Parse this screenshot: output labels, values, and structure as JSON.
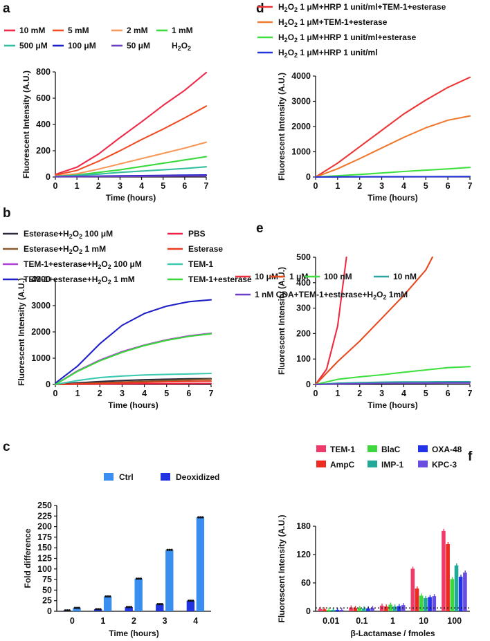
{
  "chart_data": [
    {
      "panel": "a",
      "type": "line",
      "xlabel": "Time (hours)",
      "ylabel": "Fluorescent Intensity (A.U.)",
      "xlim": [
        0,
        7
      ],
      "ylim": [
        0,
        800
      ],
      "xticks": [
        "0",
        "1",
        "2",
        "3",
        "4",
        "5",
        "6",
        "7"
      ],
      "yticks": [
        "0",
        "200",
        "400",
        "600",
        "800"
      ],
      "legend_suffix": "H2O2",
      "series": [
        {
          "name": "10 mM",
          "color": "#ef2a4a",
          "points": [
            [
              0,
              20
            ],
            [
              1,
              75
            ],
            [
              2,
              175
            ],
            [
              3,
              300
            ],
            [
              4,
              420
            ],
            [
              5,
              545
            ],
            [
              6,
              660
            ],
            [
              7,
              795
            ]
          ]
        },
        {
          "name": "5 mM",
          "color": "#f04d24",
          "points": [
            [
              0,
              15
            ],
            [
              1,
              50
            ],
            [
              2,
              120
            ],
            [
              3,
              200
            ],
            [
              4,
              285
            ],
            [
              5,
              365
            ],
            [
              6,
              450
            ],
            [
              7,
              540
            ]
          ]
        },
        {
          "name": "2 mM",
          "color": "#f6995a",
          "points": [
            [
              0,
              8
            ],
            [
              1,
              25
            ],
            [
              2,
              60
            ],
            [
              3,
              100
            ],
            [
              4,
              140
            ],
            [
              5,
              180
            ],
            [
              6,
              220
            ],
            [
              7,
              265
            ]
          ]
        },
        {
          "name": "1 mM",
          "color": "#3bd93b",
          "points": [
            [
              0,
              5
            ],
            [
              1,
              15
            ],
            [
              2,
              35
            ],
            [
              3,
              55
            ],
            [
              4,
              80
            ],
            [
              5,
              105
            ],
            [
              6,
              130
            ],
            [
              7,
              155
            ]
          ]
        },
        {
          "name": "500 μM",
          "color": "#33bfa0",
          "points": [
            [
              0,
              5
            ],
            [
              1,
              12
            ],
            [
              2,
              22
            ],
            [
              3,
              35
            ],
            [
              4,
              45
            ],
            [
              5,
              55
            ],
            [
              6,
              65
            ],
            [
              7,
              78
            ]
          ]
        },
        {
          "name": "100 μM",
          "color": "#1a1fc8",
          "points": [
            [
              0,
              3
            ],
            [
              1,
              5
            ],
            [
              2,
              7
            ],
            [
              3,
              9
            ],
            [
              4,
              10
            ],
            [
              5,
              12
            ],
            [
              6,
              14
            ],
            [
              7,
              16
            ]
          ]
        },
        {
          "name": "50 μM",
          "color": "#6a3fc4",
          "points": [
            [
              0,
              2
            ],
            [
              1,
              3
            ],
            [
              2,
              4
            ],
            [
              3,
              5
            ],
            [
              4,
              6
            ],
            [
              5,
              7
            ],
            [
              6,
              8
            ],
            [
              7,
              9
            ]
          ]
        }
      ]
    },
    {
      "panel": "b",
      "type": "line",
      "xlabel": "Time (hours)",
      "ylabel": "Fluorescent Intensity (A.U.)",
      "xlim": [
        0,
        7
      ],
      "ylim": [
        0,
        4000
      ],
      "xticks": [
        "0",
        "1",
        "2",
        "3",
        "4",
        "5",
        "6",
        "7"
      ],
      "yticks": [
        "0",
        "1000",
        "2000",
        "3000",
        "4000"
      ],
      "series": [
        {
          "name": "Esterase+H2O2 100 μM",
          "color": "#2a2a3a",
          "points": [
            [
              0,
              0
            ],
            [
              1,
              60
            ],
            [
              2,
              110
            ],
            [
              3,
              150
            ],
            [
              4,
              180
            ],
            [
              5,
              200
            ],
            [
              6,
              215
            ],
            [
              7,
              225
            ]
          ]
        },
        {
          "name": "Esterase+H2O2 1 mM",
          "color": "#8a5a2a",
          "points": [
            [
              0,
              0
            ],
            [
              1,
              30
            ],
            [
              2,
              60
            ],
            [
              3,
              90
            ],
            [
              4,
              120
            ],
            [
              5,
              150
            ],
            [
              6,
              175
            ],
            [
              7,
              200
            ]
          ]
        },
        {
          "name": "TEM-1+esterase+H2O2 100 μM",
          "color": "#b040d8",
          "points": [
            [
              0,
              0
            ],
            [
              1,
              520
            ],
            [
              2,
              930
            ],
            [
              3,
              1250
            ],
            [
              4,
              1500
            ],
            [
              5,
              1700
            ],
            [
              6,
              1850
            ],
            [
              7,
              1950
            ]
          ]
        },
        {
          "name": "TEM-1+esterase+H2O2 1 mM",
          "color": "#2020c8",
          "points": [
            [
              0,
              50
            ],
            [
              1,
              700
            ],
            [
              2,
              1550
            ],
            [
              3,
              2250
            ],
            [
              4,
              2700
            ],
            [
              5,
              2980
            ],
            [
              6,
              3150
            ],
            [
              7,
              3220
            ]
          ]
        },
        {
          "name": "PBS",
          "color": "#ee2248",
          "points": [
            [
              0,
              0
            ],
            [
              1,
              8
            ],
            [
              2,
              15
            ],
            [
              3,
              20
            ],
            [
              4,
              25
            ],
            [
              5,
              30
            ],
            [
              6,
              35
            ],
            [
              7,
              40
            ]
          ]
        },
        {
          "name": "Esterase",
          "color": "#e83a1c",
          "points": [
            [
              0,
              0
            ],
            [
              1,
              20
            ],
            [
              2,
              40
            ],
            [
              3,
              60
            ],
            [
              4,
              80
            ],
            [
              5,
              100
            ],
            [
              6,
              115
            ],
            [
              7,
              130
            ]
          ]
        },
        {
          "name": "TEM-1",
          "color": "#3ccab0",
          "points": [
            [
              0,
              0
            ],
            [
              1,
              150
            ],
            [
              2,
              260
            ],
            [
              3,
              320
            ],
            [
              4,
              360
            ],
            [
              5,
              385
            ],
            [
              6,
              400
            ],
            [
              7,
              420
            ]
          ]
        },
        {
          "name": "TEM-1+esterase",
          "color": "#38d838",
          "points": [
            [
              0,
              0
            ],
            [
              1,
              500
            ],
            [
              2,
              900
            ],
            [
              3,
              1220
            ],
            [
              4,
              1480
            ],
            [
              5,
              1680
            ],
            [
              6,
              1830
            ],
            [
              7,
              1930
            ]
          ]
        }
      ]
    },
    {
      "panel": "c",
      "type": "bar",
      "xlabel": "Time (hours)",
      "ylabel": "Fold difference",
      "ylim": [
        0,
        250
      ],
      "categories": [
        "0",
        "1",
        "2",
        "3",
        "4"
      ],
      "yticks": [
        "0",
        "25",
        "50",
        "75",
        "100",
        "125",
        "150",
        "175",
        "200",
        "225",
        "250"
      ],
      "series": [
        {
          "name": "Deoxidized",
          "color": "#2233e0",
          "values": [
            2,
            5,
            10,
            17,
            25
          ]
        },
        {
          "name": "Ctrl",
          "color": "#3a8ef0",
          "values": [
            8,
            35,
            77,
            145,
            222
          ]
        }
      ]
    },
    {
      "panel": "d",
      "type": "line",
      "xlabel": "Time (hours)",
      "ylabel": "Fluorescent Intensity (A.U.)",
      "xlim": [
        0,
        7
      ],
      "ylim": [
        0,
        4000
      ],
      "xticks": [
        "0",
        "1",
        "2",
        "3",
        "4",
        "5",
        "6",
        "7"
      ],
      "yticks": [
        "0",
        "1000",
        "2000",
        "3000",
        "4000"
      ],
      "series": [
        {
          "name": "H2O2 1 μM+HRP 1 unit/ml+TEM-1+esterase",
          "color": "#ee3535",
          "points": [
            [
              0,
              0
            ],
            [
              1,
              550
            ],
            [
              2,
              1200
            ],
            [
              3,
              1850
            ],
            [
              4,
              2500
            ],
            [
              5,
              3050
            ],
            [
              6,
              3550
            ],
            [
              7,
              3950
            ]
          ]
        },
        {
          "name": "H2O2 1 μM+TEM-1+esterase",
          "color": "#f07a30",
          "points": [
            [
              0,
              0
            ],
            [
              1,
              330
            ],
            [
              2,
              730
            ],
            [
              3,
              1150
            ],
            [
              4,
              1570
            ],
            [
              5,
              1950
            ],
            [
              6,
              2250
            ],
            [
              7,
              2420
            ]
          ]
        },
        {
          "name": "H2O2 1 μM+HRP 1 unit/ml+esterase",
          "color": "#40e040",
          "points": [
            [
              0,
              0
            ],
            [
              1,
              50
            ],
            [
              2,
              100
            ],
            [
              3,
              160
            ],
            [
              4,
              220
            ],
            [
              5,
              270
            ],
            [
              6,
              320
            ],
            [
              7,
              380
            ]
          ]
        },
        {
          "name": "H2O2 1 μM+HRP 1 unit/ml",
          "color": "#2233d8",
          "points": [
            [
              0,
              0
            ],
            [
              1,
              5
            ],
            [
              2,
              8
            ],
            [
              3,
              10
            ],
            [
              4,
              12
            ],
            [
              5,
              14
            ],
            [
              6,
              16
            ],
            [
              7,
              18
            ]
          ]
        }
      ]
    },
    {
      "panel": "e",
      "type": "line",
      "xlabel": "Time (hours)",
      "ylabel": "Fluorescent Intensity (A.U.)",
      "xlim": [
        0,
        7
      ],
      "ylim": [
        0,
        500
      ],
      "xticks": [
        "0",
        "1",
        "2",
        "3",
        "4",
        "5",
        "6",
        "7"
      ],
      "yticks": [
        "0",
        "100",
        "200",
        "300",
        "400",
        "500"
      ],
      "series": [
        {
          "name": "10 μM",
          "color": "#ee2a40",
          "points": [
            [
              0,
              0
            ],
            [
              0.5,
              60
            ],
            [
              1,
              230
            ],
            [
              1.4,
              500
            ]
          ]
        },
        {
          "name": "1 μM",
          "color": "#e84a20",
          "points": [
            [
              0,
              0
            ],
            [
              1,
              90
            ],
            [
              2,
              170
            ],
            [
              3,
              260
            ],
            [
              4,
              350
            ],
            [
              5,
              450
            ],
            [
              5.3,
              500
            ]
          ]
        },
        {
          "name": "100 nM",
          "color": "#3de03d",
          "points": [
            [
              0,
              0
            ],
            [
              1,
              20
            ],
            [
              2,
              30
            ],
            [
              3,
              38
            ],
            [
              4,
              48
            ],
            [
              5,
              57
            ],
            [
              6,
              66
            ],
            [
              7,
              70
            ]
          ]
        },
        {
          "name": "10 nM",
          "color": "#2aa5a0",
          "points": [
            [
              0,
              0
            ],
            [
              1,
              5
            ],
            [
              2,
              7
            ],
            [
              3,
              9
            ],
            [
              4,
              10
            ],
            [
              5,
              10
            ],
            [
              6,
              11
            ],
            [
              7,
              11
            ]
          ]
        },
        {
          "name": "1 nM CDA+TEM-1+esterase+H2O2 1mM",
          "color": "#6a3fc4",
          "points": [
            [
              0,
              0
            ],
            [
              1,
              2
            ],
            [
              2,
              3
            ],
            [
              3,
              4
            ],
            [
              4,
              5
            ],
            [
              5,
              5
            ],
            [
              6,
              6
            ],
            [
              7,
              6
            ]
          ]
        }
      ]
    },
    {
      "panel": "f",
      "type": "bar",
      "xlabel": "β-Lactamase / fmoles",
      "ylabel": "Fluorescent Intensity (A.U.)",
      "ylim": [
        0,
        180
      ],
      "categories": [
        "0.01",
        "0.1",
        "1",
        "10",
        "100"
      ],
      "yticks": [
        "0",
        "60",
        "120",
        "180"
      ],
      "baseline": 7,
      "series": [
        {
          "name": "TEM-1",
          "color": "#f03a6a",
          "values": [
            5,
            8,
            12,
            90,
            170
          ]
        },
        {
          "name": "AmpC",
          "color": "#ee2a20",
          "values": [
            4,
            7,
            10,
            48,
            142
          ]
        },
        {
          "name": "BlaC",
          "color": "#3ed83e",
          "values": [
            3,
            7,
            14,
            33,
            68
          ]
        },
        {
          "name": "IMP-1",
          "color": "#22a896",
          "values": [
            3,
            6,
            10,
            28,
            97
          ]
        },
        {
          "name": "OXA-48",
          "color": "#2233e8",
          "values": [
            3,
            6,
            11,
            30,
            73
          ]
        },
        {
          "name": "KPC-3",
          "color": "#6a4de0",
          "values": [
            3,
            7,
            13,
            32,
            82
          ]
        }
      ]
    }
  ]
}
